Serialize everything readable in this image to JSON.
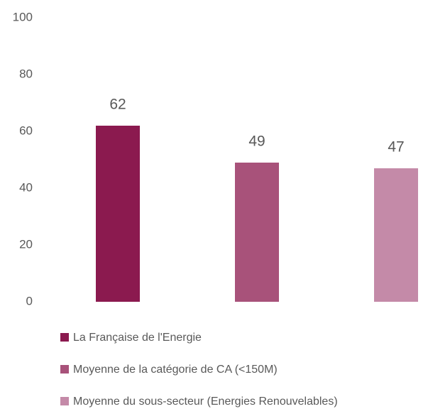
{
  "chart_data": {
    "type": "bar",
    "categories": [
      null
    ],
    "series": [
      {
        "name": "La Française de l'Energie",
        "color": "#8b1a4f",
        "values": [
          62
        ]
      },
      {
        "name": "Moyenne de la catégorie de CA (<150M)",
        "color": "#a8527a",
        "values": [
          49
        ]
      },
      {
        "name": "Moyenne du sous-secteur (Energies Renouvelables)",
        "color": "#c48aa8",
        "values": [
          47
        ]
      }
    ],
    "ylim": [
      0,
      100
    ],
    "yticks": [
      0,
      20,
      40,
      60,
      80,
      100
    ],
    "grid": false,
    "legend": "bottom"
  }
}
